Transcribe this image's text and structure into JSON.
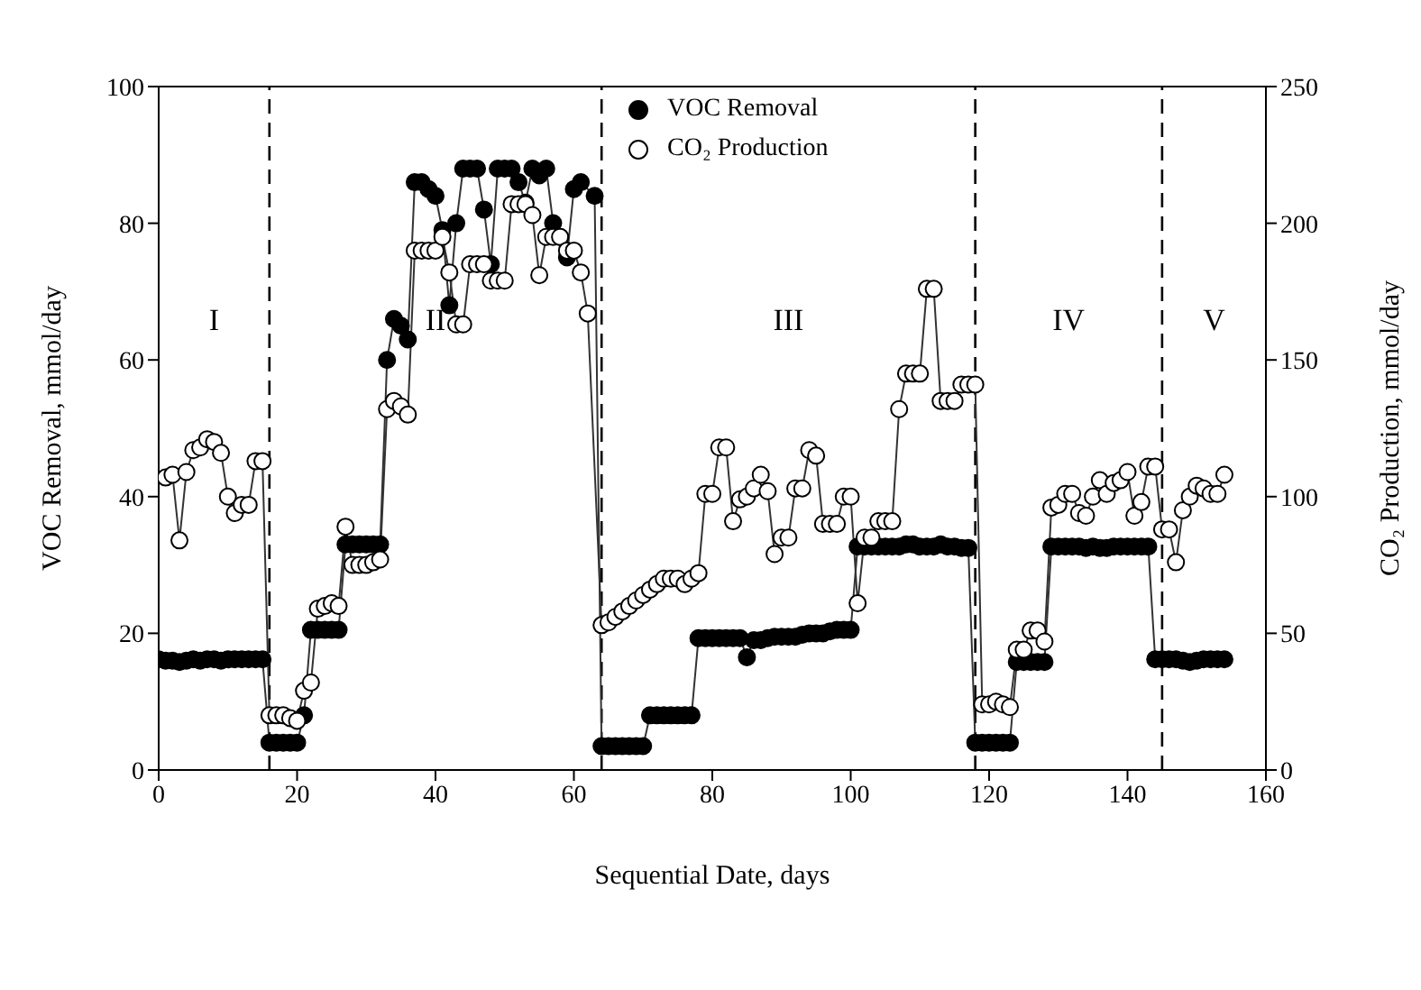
{
  "chart_data": {
    "type": "line",
    "xlabel": "Sequential Date, days",
    "ylabel": "VOC Removal, mmol/day",
    "y2label": "CO₂ Production, mmol/day",
    "xlim": [
      0,
      160
    ],
    "xticks": [
      0,
      20,
      40,
      60,
      80,
      100,
      120,
      140,
      160
    ],
    "ylim": [
      0,
      100
    ],
    "yticks": [
      0,
      20,
      40,
      60,
      80,
      100
    ],
    "y2lim": [
      0,
      250
    ],
    "y2ticks": [
      0,
      50,
      100,
      150,
      200,
      250
    ],
    "legend": "top",
    "marker": "circle",
    "line_style": "solid",
    "series": [
      {
        "name": "VOC Removal",
        "color": "#000000",
        "x": [
          0,
          1,
          2,
          3,
          4,
          5,
          6,
          7,
          8,
          9,
          10,
          11,
          12,
          13,
          14,
          15,
          16,
          17,
          18,
          19,
          20,
          21,
          22,
          23,
          24,
          25,
          26,
          27,
          28,
          29,
          30,
          31,
          32,
          33,
          34,
          35,
          36,
          37,
          38,
          39,
          40,
          41,
          42,
          43,
          44,
          45,
          46,
          47,
          48,
          49,
          50,
          51,
          52,
          53,
          54,
          55,
          56,
          57,
          58,
          59,
          60,
          61,
          63,
          64,
          65,
          66,
          67,
          68,
          69,
          70,
          71,
          72,
          73,
          74,
          75,
          76,
          77,
          78,
          79,
          80,
          81,
          82,
          83,
          84,
          85,
          86,
          87,
          88,
          89,
          90,
          91,
          92,
          93,
          94,
          95,
          96,
          97,
          98,
          99,
          100,
          101,
          102,
          103,
          104,
          105,
          106,
          107,
          108,
          109,
          110,
          111,
          112,
          113,
          114,
          115,
          116,
          117,
          118,
          119,
          120,
          121,
          122,
          123,
          124,
          125,
          126,
          127,
          128,
          129,
          130,
          131,
          132,
          133,
          134,
          135,
          136,
          137,
          138,
          139,
          140,
          141,
          142,
          143,
          144,
          145,
          146,
          147,
          148,
          149,
          150,
          151,
          152,
          153,
          154
        ],
        "values": [
          16.2,
          16,
          16,
          15.8,
          16,
          16.2,
          16,
          16.2,
          16.2,
          16,
          16.2,
          16.2,
          16.2,
          16.2,
          16.2,
          16.2,
          4,
          4,
          4,
          4,
          4,
          8,
          20.5,
          20.5,
          20.5,
          20.5,
          20.5,
          33,
          33,
          33,
          33,
          33,
          33,
          60,
          66,
          65,
          63,
          86,
          86,
          85,
          84,
          79,
          68,
          80,
          88,
          88,
          88,
          82,
          74,
          88,
          88,
          88,
          86,
          83,
          88,
          87,
          88,
          80,
          78,
          75,
          85,
          86,
          84,
          3.5,
          3.5,
          3.5,
          3.5,
          3.5,
          3.5,
          3.5,
          8,
          8,
          8,
          8,
          8,
          8,
          8,
          19.3,
          19.3,
          19.3,
          19.3,
          19.3,
          19.3,
          19.3,
          16.5,
          19,
          19,
          19.3,
          19.5,
          19.5,
          19.5,
          19.5,
          19.8,
          20,
          20,
          20,
          20.3,
          20.5,
          20.5,
          20.5,
          32.7,
          32.7,
          32.7,
          32.7,
          32.7,
          32.7,
          32.7,
          33,
          33,
          32.7,
          32.7,
          32.7,
          33,
          32.7,
          32.7,
          32.5,
          32.5,
          4,
          4,
          4,
          4,
          4,
          4,
          15.8,
          15.8,
          15.8,
          15.8,
          15.8,
          32.7,
          32.7,
          32.7,
          32.7,
          32.7,
          32.5,
          32.7,
          32.5,
          32.5,
          32.7,
          32.7,
          32.7,
          32.7,
          32.7,
          32.7,
          16.2,
          16.2,
          16.2,
          16.2,
          16,
          15.8,
          16,
          16.2,
          16.2,
          16.2,
          16.2
        ]
      },
      {
        "name": "CO₂ Production",
        "color": "#ffffff",
        "axis": "y2",
        "x": [
          1,
          2,
          3,
          4,
          5,
          6,
          7,
          8,
          9,
          10,
          11,
          12,
          13,
          14,
          15,
          16,
          17,
          18,
          19,
          20,
          21,
          22,
          23,
          24,
          25,
          26,
          27,
          28,
          29,
          30,
          31,
          32,
          33,
          34,
          35,
          36,
          37,
          38,
          39,
          40,
          41,
          42,
          43,
          44,
          45,
          46,
          47,
          48,
          49,
          50,
          51,
          52,
          53,
          54,
          55,
          56,
          57,
          58,
          59,
          60,
          61,
          62,
          64,
          65,
          66,
          67,
          68,
          69,
          70,
          71,
          72,
          73,
          74,
          75,
          76,
          77,
          78,
          79,
          80,
          81,
          82,
          83,
          84,
          85,
          86,
          87,
          88,
          89,
          90,
          91,
          92,
          93,
          94,
          95,
          96,
          97,
          98,
          99,
          100,
          101,
          102,
          103,
          104,
          105,
          106,
          107,
          108,
          109,
          110,
          111,
          112,
          113,
          114,
          115,
          116,
          117,
          118,
          119,
          120,
          121,
          122,
          123,
          124,
          125,
          126,
          127,
          128,
          129,
          130,
          131,
          132,
          133,
          134,
          135,
          136,
          137,
          138,
          139,
          140,
          141,
          142,
          143,
          144,
          145,
          146,
          147,
          148,
          149,
          150,
          151,
          152,
          153,
          154
        ],
        "values": [
          107,
          108,
          84,
          109,
          117,
          118,
          121,
          120,
          116,
          100,
          94,
          97,
          97,
          113,
          113,
          20,
          20,
          20,
          19,
          18,
          29,
          32,
          59,
          60,
          61,
          60,
          89,
          75,
          75,
          75,
          76,
          77,
          132,
          135,
          133,
          130,
          190,
          190,
          190,
          190,
          195,
          182,
          163,
          163,
          185,
          185,
          185,
          179,
          179,
          179,
          207,
          207,
          207,
          203,
          181,
          195,
          195,
          195,
          190,
          190,
          182,
          167,
          53,
          54,
          56,
          58,
          60,
          62,
          64,
          66,
          68,
          70,
          70,
          70,
          68,
          70,
          72,
          101,
          101,
          118,
          118,
          91,
          99,
          100,
          103,
          108,
          102,
          79,
          85,
          85,
          103,
          103,
          117,
          115,
          90,
          90,
          90,
          100,
          100,
          61,
          85,
          85,
          91,
          91,
          91,
          132,
          145,
          145,
          145,
          176,
          176,
          135,
          135,
          135,
          141,
          141,
          141,
          24,
          24,
          25,
          24,
          23,
          44,
          44,
          51,
          51,
          47,
          96,
          97,
          101,
          101,
          94,
          93,
          100,
          106,
          101,
          105,
          106,
          109,
          93,
          98,
          111,
          111,
          88,
          88,
          76,
          95,
          100,
          104,
          103,
          101,
          101,
          108
        ]
      }
    ],
    "ref_lines": [
      {
        "axis": "x",
        "value": 16,
        "color": "#000000",
        "line_style": "dashed"
      },
      {
        "axis": "x",
        "value": 64,
        "color": "#000000",
        "line_style": "dashed"
      },
      {
        "axis": "x",
        "value": 118,
        "color": "#000000",
        "line_style": "dashed"
      },
      {
        "axis": "x",
        "value": 145,
        "color": "#000000",
        "line_style": "dashed"
      }
    ],
    "annotations": [
      "I",
      "II",
      "III",
      "IV",
      "V"
    ]
  }
}
